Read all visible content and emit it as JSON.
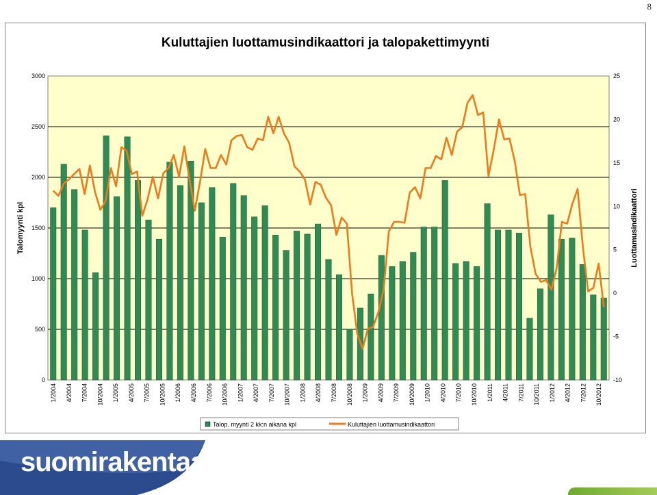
{
  "page_number": "8",
  "logo_text": "suomirakentaa.fi",
  "colors": {
    "bars": "#2f8a54",
    "line": "#f07a1a",
    "plot_bg": "#ffffcc",
    "logo_blue": "#2c4b8f"
  },
  "chart_data": {
    "type": "bar",
    "title": "Kuluttajien luottamusindikaattori ja talopakettimyynti",
    "ylabel": "Talomyynti kpl",
    "y2label": "Luottamusindikaattori",
    "ylim": [
      0,
      3000
    ],
    "y2lim": [
      -10,
      25
    ],
    "yticks": [
      "0",
      "500",
      "1000",
      "1500",
      "2000",
      "2500",
      "3000"
    ],
    "y2ticks": [
      "-10",
      "-5",
      "0",
      "5",
      "10",
      "15",
      "20",
      "25"
    ],
    "xtick_labels": [
      "1/2004",
      "4/2004",
      "7/2004",
      "10/2004",
      "1/2005",
      "4/2005",
      "7/2005",
      "10/2005",
      "1/2006",
      "4/2006",
      "7/2006",
      "10/2006",
      "1/2007",
      "4/2007",
      "7/2007",
      "10/2007",
      "1/2008",
      "4/2008",
      "7/2008",
      "10/2008",
      "1/2009",
      "4/2009",
      "7/2009",
      "10/2009",
      "1/2010",
      "4/2010",
      "7/2010",
      "10/2010",
      "1/2011",
      "4/2011",
      "7/2011",
      "10/2011",
      "1/2012",
      "4/2012",
      "7/2012",
      "10/2012"
    ],
    "legend": [
      "Talop. myynti 2 kk:n aikana kpl",
      "Kuluttajien luottamusindikaattori"
    ],
    "legend_position": "bottom",
    "grid": true,
    "bar_series": {
      "name": "Talop. myynti 2 kk:n aikana kpl",
      "values": [
        1700,
        2130,
        1880,
        1480,
        1060,
        2410,
        1810,
        2400,
        1970,
        1580,
        1390,
        2150,
        1920,
        2160,
        1750,
        1900,
        1410,
        1940,
        1820,
        1610,
        1720,
        1430,
        1280,
        1470,
        1440,
        1540,
        1190,
        1040,
        500,
        710,
        850,
        1230,
        1120,
        1170,
        1260,
        1510,
        1510,
        1970,
        1150,
        1170,
        1120,
        1740,
        1480,
        1480,
        1450,
        610,
        900,
        1630,
        1390,
        1400,
        1140,
        840,
        810
      ]
    },
    "line_series": {
      "name": "Kuluttajien luottamusindikaattori",
      "values": [
        11.8,
        11.2,
        12.6,
        13.1,
        13.7,
        14.3,
        11.4,
        14.7,
        11.6,
        9.6,
        10.6,
        14.4,
        12.3,
        16.8,
        16.4,
        13.7,
        14.0,
        8.9,
        10.8,
        13.4,
        10.9,
        13.8,
        14.4,
        15.9,
        13.4,
        16.9,
        13.1,
        9.5,
        12.8,
        16.6,
        14.4,
        14.4,
        15.9,
        14.8,
        17.6,
        18.1,
        18.2,
        16.8,
        16.5,
        17.8,
        17.6,
        20.3,
        18.4,
        20.3,
        18.4,
        17.3,
        14.6,
        14.0,
        13.1,
        10.2,
        12.8,
        12.5,
        11.0,
        10.1,
        6.7,
        8.7,
        8.0,
        -0.1,
        -4.7,
        -6.4,
        -4.1,
        -3.9,
        -2.2,
        0.4,
        7.1,
        8.2,
        8.2,
        8.1,
        11.6,
        12.2,
        10.9,
        14.4,
        14.4,
        15.8,
        15.4,
        17.9,
        15.9,
        18.6,
        19.1,
        21.9,
        22.8,
        20.5,
        20.8,
        13.5,
        16.5,
        20.0,
        17.7,
        17.8,
        15.2,
        11.3,
        11.4,
        5.3,
        2.2,
        1.3,
        1.5,
        0.4,
        2.9,
        8.2,
        8.0,
        10.3,
        12.0,
        5.3,
        0.2,
        0.6,
        3.4,
        -1.6
      ]
    }
  }
}
